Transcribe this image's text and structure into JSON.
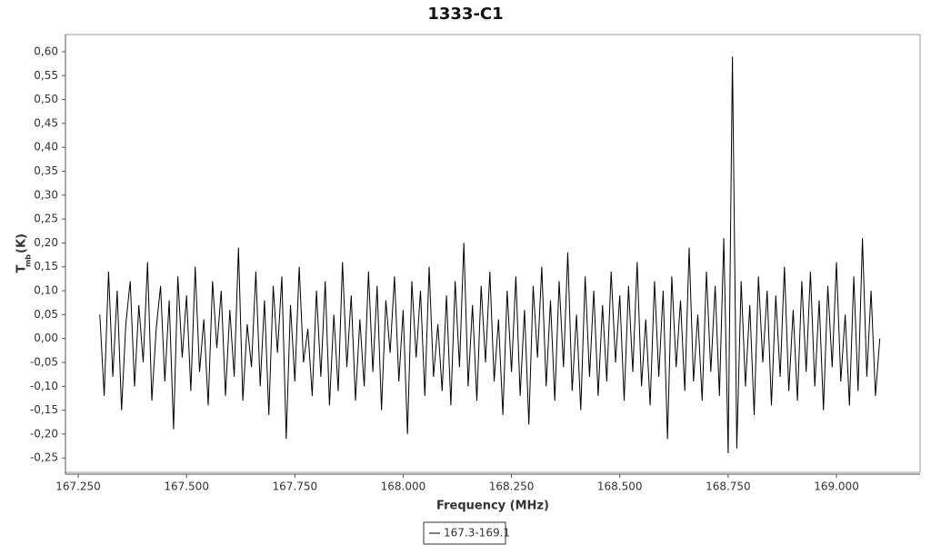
{
  "chart_data": {
    "type": "line",
    "title": "1333-C1",
    "x_label": "Frequency (MHz)",
    "y_label": "T",
    "y_label_sub": "mb",
    "y_label_unit": "(K)",
    "xlim": [
      167.2206,
      169.193
    ],
    "ylim": [
      -0.28,
      0.636
    ],
    "xticks": [
      {
        "value": 167.25,
        "label": "167.250"
      },
      {
        "value": 167.5,
        "label": "167.500"
      },
      {
        "value": 167.75,
        "label": "167.750"
      },
      {
        "value": 168.0,
        "label": "168.000"
      },
      {
        "value": 168.25,
        "label": "168.250"
      },
      {
        "value": 168.5,
        "label": "168.500"
      },
      {
        "value": 168.75,
        "label": "168.750"
      },
      {
        "value": 169.0,
        "label": "169.000"
      }
    ],
    "yticks": [
      {
        "value": -0.25,
        "label": "-0,25"
      },
      {
        "value": -0.2,
        "label": "-0,20"
      },
      {
        "value": -0.15,
        "label": "-0,15"
      },
      {
        "value": -0.1,
        "label": "-0,10"
      },
      {
        "value": -0.05,
        "label": "-0,05"
      },
      {
        "value": 0,
        "label": "0,00"
      },
      {
        "value": 0.05,
        "label": "0,05"
      },
      {
        "value": 0.1,
        "label": "0,10"
      },
      {
        "value": 0.15,
        "label": "0,15"
      },
      {
        "value": 0.2,
        "label": "0,20"
      },
      {
        "value": 0.25,
        "label": "0,25"
      },
      {
        "value": 0.3,
        "label": "0,30"
      },
      {
        "value": 0.35,
        "label": "0,35"
      },
      {
        "value": 0.4,
        "label": "0,40"
      },
      {
        "value": 0.45,
        "label": "0,45"
      },
      {
        "value": 0.5,
        "label": "0,50"
      },
      {
        "value": 0.55,
        "label": "0,55"
      },
      {
        "value": 0.6,
        "label": "0,60"
      }
    ],
    "x": [
      167.3,
      167.31,
      167.32,
      167.33,
      167.34,
      167.35,
      167.36,
      167.37,
      167.38,
      167.39,
      167.4,
      167.41,
      167.42,
      167.43,
      167.44,
      167.45,
      167.46,
      167.47,
      167.48,
      167.49,
      167.5,
      167.51,
      167.52,
      167.53,
      167.54,
      167.55,
      167.56,
      167.57,
      167.58,
      167.59,
      167.6,
      167.61,
      167.62,
      167.63,
      167.64,
      167.65,
      167.66,
      167.67,
      167.68,
      167.69,
      167.7,
      167.71,
      167.72,
      167.73,
      167.74,
      167.75,
      167.76,
      167.77,
      167.78,
      167.79,
      167.8,
      167.81,
      167.82,
      167.83,
      167.84,
      167.85,
      167.86,
      167.87,
      167.88,
      167.89,
      167.9,
      167.91,
      167.92,
      167.93,
      167.94,
      167.95,
      167.96,
      167.97,
      167.98,
      167.99,
      168.0,
      168.01,
      168.02,
      168.03,
      168.04,
      168.05,
      168.06,
      168.07,
      168.08,
      168.09,
      168.1,
      168.11,
      168.12,
      168.13,
      168.14,
      168.15,
      168.16,
      168.17,
      168.18,
      168.19,
      168.2,
      168.21,
      168.22,
      168.23,
      168.24,
      168.25,
      168.26,
      168.27,
      168.28,
      168.29,
      168.3,
      168.31,
      168.32,
      168.33,
      168.34,
      168.35,
      168.36,
      168.37,
      168.38,
      168.39,
      168.4,
      168.41,
      168.42,
      168.43,
      168.44,
      168.45,
      168.46,
      168.47,
      168.48,
      168.49,
      168.5,
      168.51,
      168.52,
      168.53,
      168.54,
      168.55,
      168.56,
      168.57,
      168.58,
      168.59,
      168.6,
      168.61,
      168.62,
      168.63,
      168.64,
      168.65,
      168.66,
      168.67,
      168.68,
      168.69,
      168.7,
      168.71,
      168.72,
      168.73,
      168.74,
      168.75,
      168.76,
      168.77,
      168.78,
      168.79,
      168.8,
      168.81,
      168.82,
      168.83,
      168.84,
      168.85,
      168.86,
      168.87,
      168.88,
      168.89,
      168.9,
      168.91,
      168.92,
      168.93,
      168.94,
      168.95,
      168.96,
      168.97,
      168.98,
      168.99,
      169.0,
      169.01,
      169.02,
      169.03,
      169.04,
      169.05,
      169.06,
      169.07,
      169.08,
      169.09,
      169.1
    ],
    "series": [
      {
        "name": "167.3-169.1",
        "color": "#000000",
        "values": [
          0.05,
          -0.12,
          0.14,
          -0.08,
          0.1,
          -0.15,
          0.03,
          0.12,
          -0.1,
          0.07,
          -0.05,
          0.16,
          -0.13,
          0.02,
          0.11,
          -0.09,
          0.08,
          -0.19,
          0.13,
          -0.04,
          0.09,
          -0.11,
          0.15,
          -0.07,
          0.04,
          -0.14,
          0.12,
          -0.02,
          0.1,
          -0.12,
          0.06,
          -0.08,
          0.19,
          -0.13,
          0.03,
          -0.06,
          0.14,
          -0.1,
          0.08,
          -0.16,
          0.11,
          -0.03,
          0.13,
          -0.21,
          0.07,
          -0.09,
          0.15,
          -0.05,
          0.02,
          -0.12,
          0.1,
          -0.08,
          0.12,
          -0.14,
          0.05,
          -0.11,
          0.16,
          -0.06,
          0.09,
          -0.13,
          0.04,
          -0.1,
          0.14,
          -0.07,
          0.11,
          -0.15,
          0.08,
          -0.03,
          0.13,
          -0.09,
          0.06,
          -0.2,
          0.12,
          -0.04,
          0.1,
          -0.12,
          0.15,
          -0.08,
          0.03,
          -0.11,
          0.09,
          -0.14,
          0.12,
          -0.06,
          0.2,
          -0.1,
          0.07,
          -0.13,
          0.11,
          -0.05,
          0.14,
          -0.09,
          0.04,
          -0.16,
          0.1,
          -0.07,
          0.13,
          -0.12,
          0.06,
          -0.18,
          0.11,
          -0.04,
          0.15,
          -0.1,
          0.08,
          -0.13,
          0.12,
          -0.06,
          0.18,
          -0.11,
          0.05,
          -0.15,
          0.13,
          -0.08,
          0.1,
          -0.12,
          0.07,
          -0.09,
          0.14,
          -0.05,
          0.09,
          -0.13,
          0.11,
          -0.07,
          0.16,
          -0.1,
          0.04,
          -0.14,
          0.12,
          -0.08,
          0.1,
          -0.21,
          0.13,
          -0.06,
          0.08,
          -0.11,
          0.19,
          -0.09,
          0.05,
          -0.13,
          0.14,
          -0.07,
          0.11,
          -0.12,
          0.21,
          -0.24,
          0.59,
          -0.23,
          0.12,
          -0.1,
          0.07,
          -0.16,
          0.13,
          -0.05,
          0.1,
          -0.14,
          0.09,
          -0.08,
          0.15,
          -0.11,
          0.06,
          -0.13,
          0.12,
          -0.07,
          0.14,
          -0.1,
          0.08,
          -0.15,
          0.11,
          -0.06,
          0.16,
          -0.09,
          0.05,
          -0.14,
          0.13,
          -0.11,
          0.21,
          -0.08,
          0.1,
          -0.12,
          0.0
        ]
      }
    ]
  }
}
